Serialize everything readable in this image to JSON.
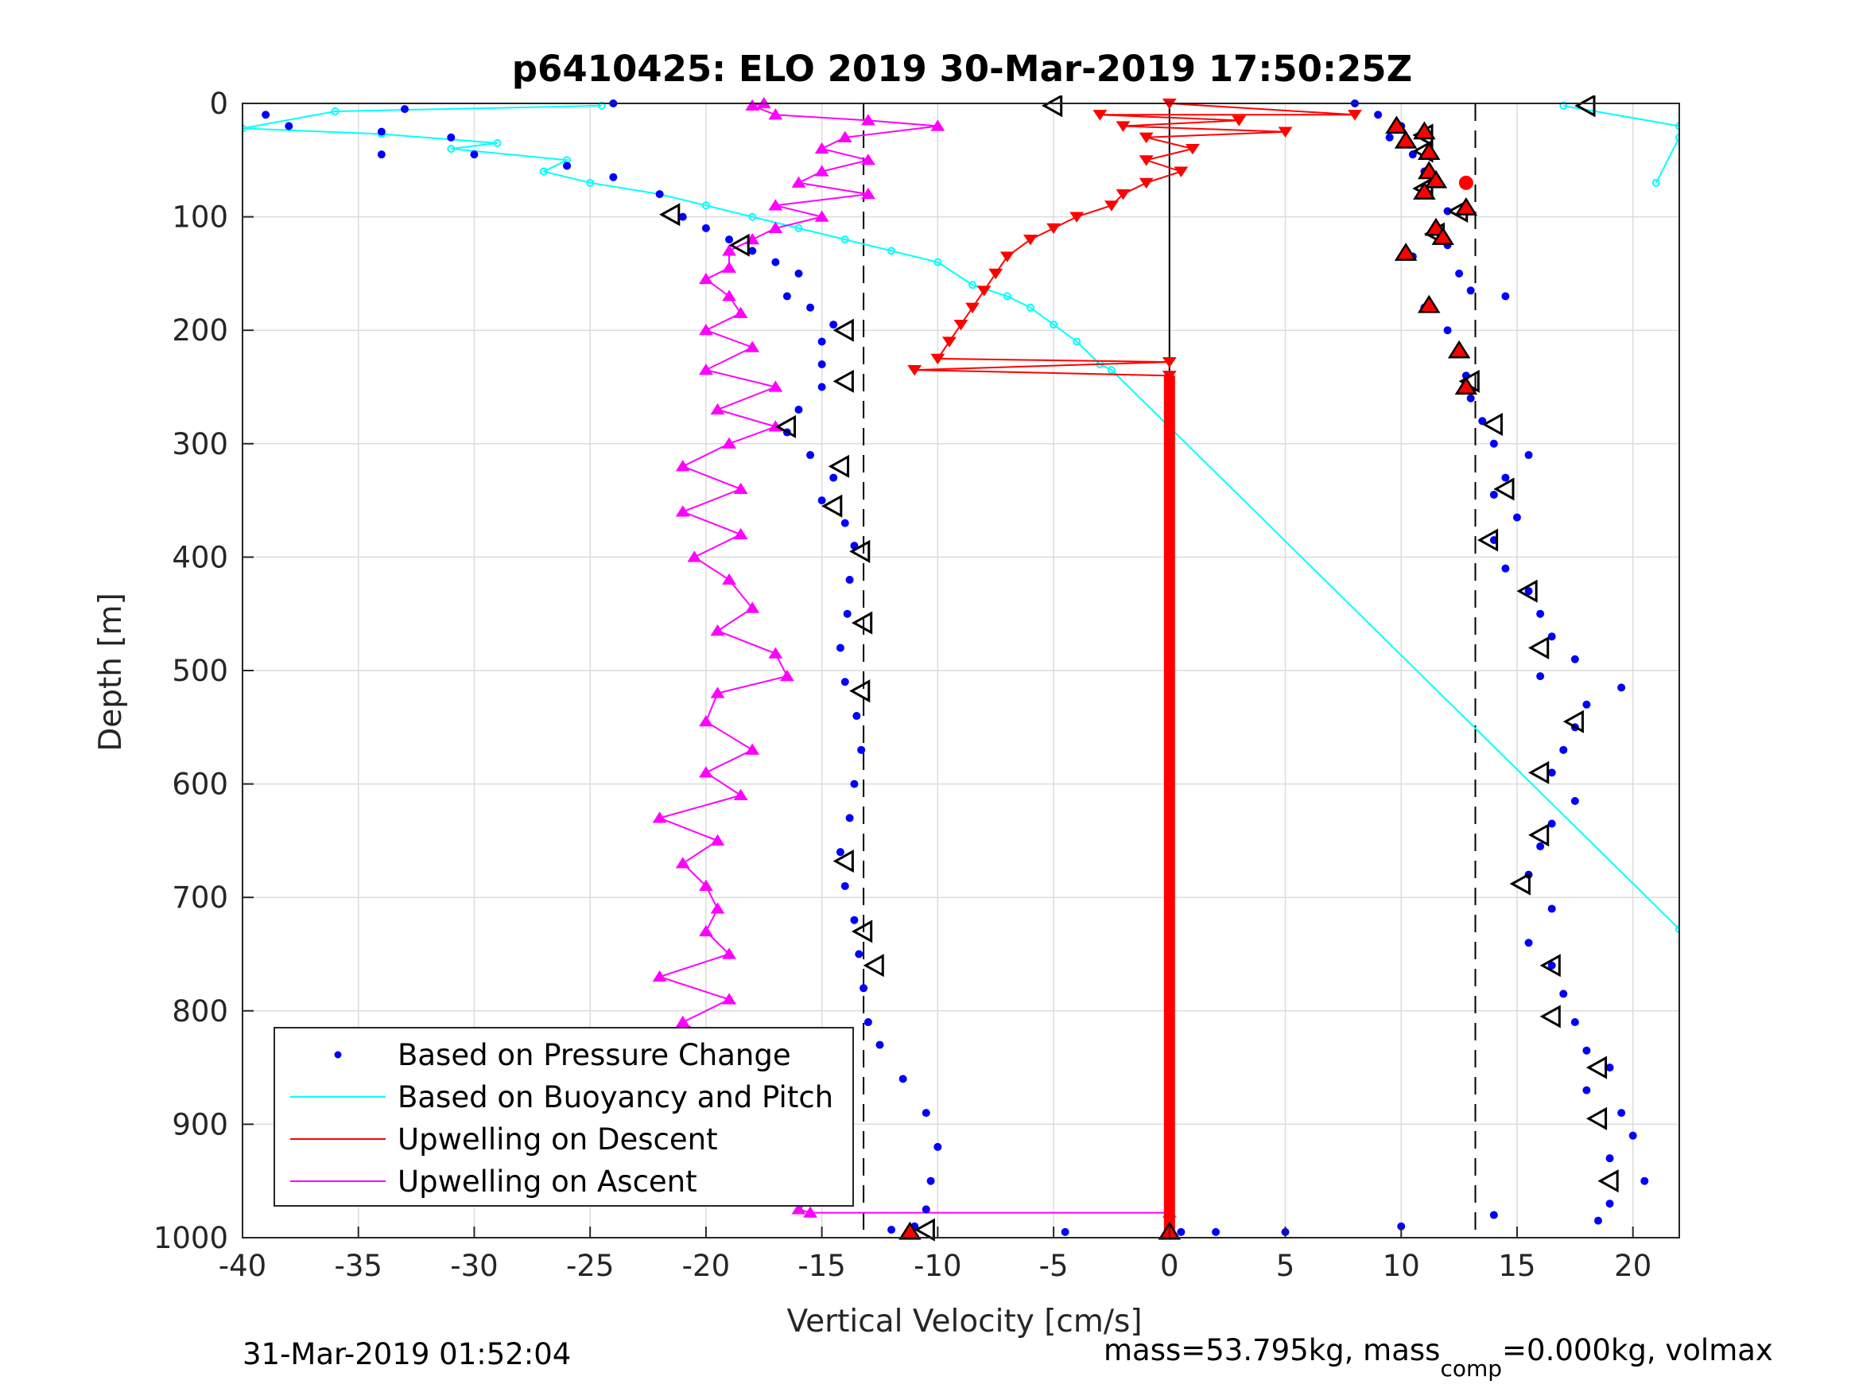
{
  "chart_data": {
    "type": "scatter",
    "title": "p6410425: ELO 2019 30-Mar-2019 17:50:25Z",
    "xlabel": "Vertical Velocity [cm/s]",
    "ylabel": "Depth [m]",
    "xlim": [
      -40,
      22
    ],
    "ylim": [
      0,
      1000
    ],
    "y_reversed": true,
    "grid": true,
    "x_ticks": [
      -40,
      -35,
      -30,
      -25,
      -20,
      -15,
      -10,
      -5,
      0,
      5,
      10,
      15,
      20
    ],
    "y_ticks": [
      0,
      100,
      200,
      300,
      400,
      500,
      600,
      700,
      800,
      900,
      1000
    ],
    "x_tick_labels": [
      "-40",
      "-35",
      "-30",
      "-25",
      "-20",
      "-15",
      "-10",
      "-5",
      "0",
      "5",
      "10",
      "15",
      "20"
    ],
    "y_tick_labels": [
      "0",
      "100",
      "200",
      "300",
      "400",
      "500",
      "600",
      "700",
      "800",
      "900",
      "1000"
    ],
    "reference_lines": {
      "dashed_x": [
        -13.2,
        13.2
      ],
      "solid_x": [
        0
      ]
    },
    "legend_position": "bottom-left",
    "series": [
      {
        "name": "Based on Pressure Change",
        "color": "#0000ff",
        "marker": "dot",
        "descent": [
          [
            -24,
            0
          ],
          [
            -39,
            10
          ],
          [
            -33,
            5
          ],
          [
            -38,
            20
          ],
          [
            -34,
            25
          ],
          [
            -31,
            30
          ],
          [
            -34,
            45
          ],
          [
            -30,
            45
          ],
          [
            -26,
            55
          ],
          [
            -24,
            65
          ],
          [
            -22,
            80
          ],
          [
            -21,
            100
          ],
          [
            -20,
            110
          ],
          [
            -19,
            120
          ],
          [
            -18,
            130
          ],
          [
            -17,
            140
          ],
          [
            -16,
            150
          ],
          [
            -16.5,
            170
          ],
          [
            -15.5,
            180
          ],
          [
            -14.5,
            195
          ],
          [
            -15,
            210
          ],
          [
            -15,
            230
          ],
          [
            -15,
            250
          ],
          [
            -16,
            270
          ],
          [
            -16.5,
            290
          ],
          [
            -15.5,
            310
          ],
          [
            -14.5,
            330
          ],
          [
            -15,
            350
          ],
          [
            -14,
            370
          ],
          [
            -13.6,
            390
          ],
          [
            -13.8,
            420
          ],
          [
            -13.9,
            450
          ],
          [
            -14.2,
            480
          ],
          [
            -14,
            510
          ],
          [
            -13.5,
            540
          ],
          [
            -13.3,
            570
          ],
          [
            -13.6,
            600
          ],
          [
            -13.8,
            630
          ],
          [
            -14.2,
            660
          ],
          [
            -14,
            690
          ],
          [
            -13.6,
            720
          ],
          [
            -13.4,
            750
          ],
          [
            -13.2,
            780
          ],
          [
            -13,
            810
          ],
          [
            -12.5,
            830
          ],
          [
            -11.5,
            860
          ],
          [
            -10.5,
            890
          ],
          [
            -10,
            920
          ],
          [
            -10.3,
            950
          ],
          [
            -10.5,
            975
          ],
          [
            -11,
            990
          ],
          [
            -12,
            993
          ]
        ],
        "ascent": [
          [
            8,
            0
          ],
          [
            9,
            10
          ],
          [
            10,
            20
          ],
          [
            9.5,
            30
          ],
          [
            10.5,
            45
          ],
          [
            11,
            60
          ],
          [
            11.5,
            70
          ],
          [
            11.2,
            80
          ],
          [
            12,
            95
          ],
          [
            11.5,
            110
          ],
          [
            12,
            125
          ],
          [
            10.5,
            135
          ],
          [
            12.5,
            150
          ],
          [
            13,
            165
          ],
          [
            14.5,
            170
          ],
          [
            11,
            180
          ],
          [
            12,
            200
          ],
          [
            12.5,
            220
          ],
          [
            12.8,
            240
          ],
          [
            13,
            260
          ],
          [
            13.5,
            280
          ],
          [
            14,
            300
          ],
          [
            15.5,
            310
          ],
          [
            14.5,
            330
          ],
          [
            14,
            345
          ],
          [
            15,
            365
          ],
          [
            14,
            385
          ],
          [
            14.5,
            410
          ],
          [
            15.5,
            430
          ],
          [
            16,
            450
          ],
          [
            16.5,
            470
          ],
          [
            17.5,
            490
          ],
          [
            16,
            505
          ],
          [
            19.5,
            515
          ],
          [
            18,
            530
          ],
          [
            17.5,
            550
          ],
          [
            17,
            570
          ],
          [
            16.5,
            590
          ],
          [
            17.5,
            615
          ],
          [
            16.5,
            635
          ],
          [
            16,
            655
          ],
          [
            15.5,
            680
          ],
          [
            16.5,
            710
          ],
          [
            15.5,
            740
          ],
          [
            16.5,
            760
          ],
          [
            17,
            785
          ],
          [
            17.5,
            810
          ],
          [
            18,
            835
          ],
          [
            19,
            850
          ],
          [
            18,
            870
          ],
          [
            19.5,
            890
          ],
          [
            20,
            910
          ],
          [
            19,
            930
          ],
          [
            20.5,
            950
          ],
          [
            19,
            970
          ],
          [
            18.5,
            985
          ],
          [
            14,
            980
          ],
          [
            10,
            990
          ],
          [
            5,
            995
          ],
          [
            2,
            995
          ],
          [
            0.5,
            995
          ],
          [
            -4.5,
            995
          ]
        ]
      },
      {
        "name": "Based on Buoyancy and Pitch",
        "color": "#00ffff",
        "marker": "circle-line",
        "points": [
          [
            -24.5,
            2
          ],
          [
            -36,
            7
          ],
          [
            -40,
            22
          ],
          [
            -34,
            27
          ],
          [
            -29,
            35
          ],
          [
            -31,
            40
          ],
          [
            -26,
            50
          ],
          [
            -27,
            60
          ],
          [
            -25,
            70
          ],
          [
            -22,
            80
          ],
          [
            -20,
            90
          ],
          [
            -18,
            100
          ],
          [
            -16,
            110
          ],
          [
            -14,
            120
          ],
          [
            -12,
            130
          ],
          [
            -10,
            140
          ],
          [
            -8.5,
            160
          ],
          [
            -7,
            170
          ],
          [
            -6,
            180
          ],
          [
            -5,
            195
          ],
          [
            -4,
            210
          ],
          [
            -3,
            230
          ],
          [
            -2.5,
            235
          ],
          [
            22,
            728
          ]
        ],
        "surface_points": [
          [
            17,
            2
          ],
          [
            22,
            20
          ],
          [
            22,
            30
          ],
          [
            21,
            70
          ]
        ]
      },
      {
        "name": "Upwelling on Descent",
        "color": "#ff0000",
        "marker": "triangle-down-line",
        "points": [
          [
            0,
            0
          ],
          [
            8,
            10
          ],
          [
            -3,
            10
          ],
          [
            3,
            15
          ],
          [
            -2,
            20
          ],
          [
            5,
            25
          ],
          [
            -1,
            30
          ],
          [
            1,
            40
          ],
          [
            -1,
            50
          ],
          [
            0.5,
            60
          ],
          [
            -1,
            70
          ],
          [
            -2,
            80
          ],
          [
            -2.5,
            90
          ],
          [
            -4,
            100
          ],
          [
            -5,
            110
          ],
          [
            -6,
            120
          ],
          [
            -7,
            135
          ],
          [
            -7.5,
            150
          ],
          [
            -8,
            165
          ],
          [
            -8.5,
            180
          ],
          [
            -9,
            195
          ],
          [
            -9.5,
            210
          ],
          [
            -10,
            225
          ],
          [
            0,
            228
          ],
          [
            -11,
            235
          ],
          [
            0,
            240
          ]
        ],
        "flat_segment": {
          "x": 0,
          "y_from": 240,
          "y_to": 1000
        }
      },
      {
        "name": "Upwelling on Ascent",
        "color": "#ff00ff",
        "marker": "triangle-up-line",
        "points": [
          [
            -17.5,
            0
          ],
          [
            -18,
            2
          ],
          [
            -17,
            10
          ],
          [
            -13,
            15
          ],
          [
            -10,
            20
          ],
          [
            -14,
            30
          ],
          [
            -15,
            40
          ],
          [
            -13,
            50
          ],
          [
            -15,
            60
          ],
          [
            -16,
            70
          ],
          [
            -13,
            80
          ],
          [
            -17,
            90
          ],
          [
            -15,
            100
          ],
          [
            -17,
            110
          ],
          [
            -18,
            120
          ],
          [
            -19,
            130
          ],
          [
            -19,
            145
          ],
          [
            -20,
            155
          ],
          [
            -19,
            170
          ],
          [
            -18.5,
            185
          ],
          [
            -20,
            200
          ],
          [
            -18,
            215
          ],
          [
            -20,
            235
          ],
          [
            -17,
            250
          ],
          [
            -19.5,
            270
          ],
          [
            -17,
            285
          ],
          [
            -19,
            300
          ],
          [
            -21,
            320
          ],
          [
            -18.5,
            340
          ],
          [
            -21,
            360
          ],
          [
            -18.5,
            380
          ],
          [
            -20.5,
            400
          ],
          [
            -19,
            420
          ],
          [
            -18,
            445
          ],
          [
            -19.5,
            465
          ],
          [
            -17,
            485
          ],
          [
            -16.5,
            505
          ],
          [
            -19.5,
            520
          ],
          [
            -20,
            545
          ],
          [
            -18,
            570
          ],
          [
            -20,
            590
          ],
          [
            -18.5,
            610
          ],
          [
            -22,
            630
          ],
          [
            -19.5,
            650
          ],
          [
            -21,
            670
          ],
          [
            -20,
            690
          ],
          [
            -19.5,
            710
          ],
          [
            -20,
            730
          ],
          [
            -19,
            750
          ],
          [
            -22,
            770
          ],
          [
            -19,
            790
          ],
          [
            -21,
            810
          ],
          [
            -19.5,
            830
          ],
          [
            -18.5,
            850
          ],
          [
            -17.5,
            870
          ],
          [
            -18,
            890
          ],
          [
            -16.5,
            910
          ],
          [
            -15,
            930
          ],
          [
            -19.5,
            950
          ],
          [
            -15,
            960
          ],
          [
            -16,
            975
          ],
          [
            -15.5,
            978
          ],
          [
            0,
            978
          ]
        ]
      }
    ],
    "markers": {
      "open_triangles_left_descent": [
        [
          -5,
          2
        ],
        [
          -21.5,
          98
        ],
        [
          -18.5,
          125
        ],
        [
          -14,
          200
        ],
        [
          -14,
          245
        ],
        [
          -16.5,
          285
        ],
        [
          -14.2,
          320
        ],
        [
          -14.5,
          355
        ],
        [
          -13.3,
          395
        ],
        [
          -13.2,
          458
        ],
        [
          -13.3,
          518
        ],
        [
          -14,
          668
        ],
        [
          -13.2,
          730
        ],
        [
          -12.7,
          760
        ],
        [
          -10.5,
          993
        ]
      ],
      "open_triangles_left_ascent": [
        [
          18,
          2
        ],
        [
          11,
          28
        ],
        [
          11,
          42
        ],
        [
          11,
          75
        ],
        [
          12.5,
          95
        ],
        [
          11.5,
          115
        ],
        [
          13,
          245
        ],
        [
          14,
          283
        ],
        [
          14.5,
          340
        ],
        [
          13.8,
          385
        ],
        [
          15.5,
          430
        ],
        [
          16,
          480
        ],
        [
          17.5,
          545
        ],
        [
          16,
          590
        ],
        [
          16,
          645
        ],
        [
          15.2,
          688
        ],
        [
          16.5,
          760
        ],
        [
          16.5,
          805
        ],
        [
          18.5,
          850
        ],
        [
          18.5,
          895
        ],
        [
          19,
          950
        ]
      ],
      "filled_red_triangles_up": [
        [
          9.8,
          20
        ],
        [
          11,
          25
        ],
        [
          10.2,
          33
        ],
        [
          11.2,
          43
        ],
        [
          11.2,
          60
        ],
        [
          11.5,
          68
        ],
        [
          11,
          78
        ],
        [
          12.8,
          92
        ],
        [
          11.5,
          110
        ],
        [
          11.8,
          118
        ],
        [
          10.2,
          132
        ],
        [
          11.2,
          178
        ],
        [
          12.5,
          218
        ],
        [
          12.8,
          250
        ],
        [
          -11.2,
          995
        ],
        [
          0,
          995
        ]
      ],
      "filled_red_circle": [
        [
          12.8,
          70
        ]
      ]
    },
    "legend": [
      {
        "label": "Based on Pressure Change",
        "color": "#0000ff",
        "style": "dot"
      },
      {
        "label": "Based on Buoyancy and Pitch",
        "color": "#00ffff",
        "style": "line"
      },
      {
        "label": "Upwelling on Descent",
        "color": "#ff0000",
        "style": "line"
      },
      {
        "label": "Upwelling on Ascent",
        "color": "#ff00ff",
        "style": "line"
      }
    ]
  },
  "footer": {
    "timestamp": "31-Mar-2019 01:52:04",
    "mass_text_1": "mass=53.795kg, mass",
    "mass_sub": "comp",
    "mass_text_2": "=0.000kg, volmax"
  }
}
